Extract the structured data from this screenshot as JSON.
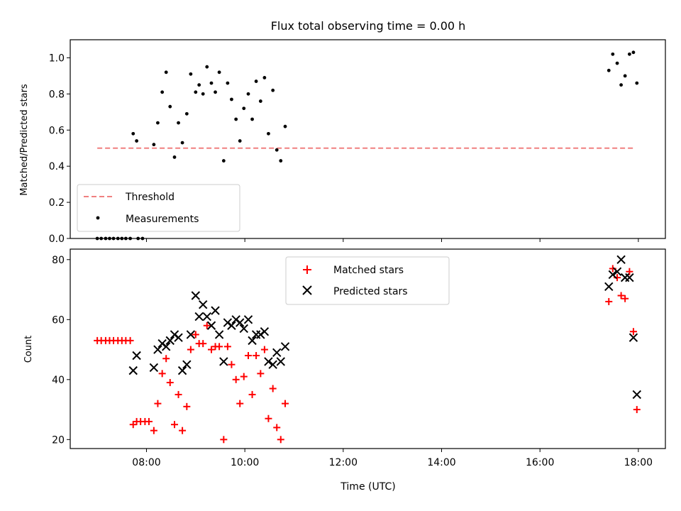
{
  "chart_data": [
    {
      "type": "scatter",
      "title": "Flux total observing time = 0.00 h",
      "xlabel": "",
      "ylabel": "Matched/Predicted stars",
      "xlim": [
        6.45,
        18.55
      ],
      "ylim": [
        0.0,
        1.1
      ],
      "yticks": [
        0.0,
        0.2,
        0.4,
        0.6,
        0.8,
        1.0
      ],
      "ytick_labels": [
        "0.0",
        "0.2",
        "0.4",
        "0.6",
        "0.8",
        "1.0"
      ],
      "xticks": [
        8,
        10,
        12,
        14,
        16,
        18
      ],
      "grid": false,
      "legend": {
        "placement": "lower-left",
        "entries": [
          "Threshold",
          "Measurements"
        ]
      },
      "threshold": {
        "name": "Threshold",
        "value": 0.5,
        "x_range": [
          7.0,
          17.92
        ],
        "color": "#f08080",
        "style": "dashed"
      },
      "series": [
        {
          "name": "Measurements",
          "color": "#000000",
          "marker": "dot",
          "points": [
            [
              7.0,
              0.0
            ],
            [
              7.08,
              0.0
            ],
            [
              7.17,
              0.0
            ],
            [
              7.25,
              0.0
            ],
            [
              7.33,
              0.0
            ],
            [
              7.42,
              0.0
            ],
            [
              7.5,
              0.0
            ],
            [
              7.58,
              0.0
            ],
            [
              7.67,
              0.0
            ],
            [
              7.83,
              0.0
            ],
            [
              7.92,
              0.0
            ],
            [
              7.73,
              0.58
            ],
            [
              7.8,
              0.54
            ],
            [
              8.15,
              0.52
            ],
            [
              8.23,
              0.64
            ],
            [
              8.32,
              0.81
            ],
            [
              8.4,
              0.92
            ],
            [
              8.48,
              0.73
            ],
            [
              8.57,
              0.45
            ],
            [
              8.65,
              0.64
            ],
            [
              8.73,
              0.53
            ],
            [
              8.82,
              0.69
            ],
            [
              8.9,
              0.91
            ],
            [
              9.0,
              0.81
            ],
            [
              9.07,
              0.85
            ],
            [
              9.15,
              0.8
            ],
            [
              9.23,
              0.95
            ],
            [
              9.32,
              0.86
            ],
            [
              9.4,
              0.81
            ],
            [
              9.48,
              0.92
            ],
            [
              9.57,
              0.43
            ],
            [
              9.65,
              0.86
            ],
            [
              9.73,
              0.77
            ],
            [
              9.82,
              0.66
            ],
            [
              9.9,
              0.54
            ],
            [
              9.98,
              0.72
            ],
            [
              10.07,
              0.8
            ],
            [
              10.15,
              0.66
            ],
            [
              10.23,
              0.87
            ],
            [
              10.32,
              0.76
            ],
            [
              10.4,
              0.89
            ],
            [
              10.48,
              0.58
            ],
            [
              10.57,
              0.82
            ],
            [
              10.65,
              0.49
            ],
            [
              10.73,
              0.43
            ],
            [
              10.82,
              0.62
            ],
            [
              17.4,
              0.93
            ],
            [
              17.48,
              1.02
            ],
            [
              17.57,
              0.97
            ],
            [
              17.65,
              0.85
            ],
            [
              17.73,
              0.9
            ],
            [
              17.82,
              1.02
            ],
            [
              17.9,
              1.03
            ],
            [
              17.97,
              0.86
            ]
          ]
        }
      ]
    },
    {
      "type": "scatter",
      "title": "",
      "xlabel": "Time (UTC)",
      "ylabel": "Count",
      "xlim": [
        6.45,
        18.55
      ],
      "ylim": [
        17,
        83.5
      ],
      "yticks": [
        20,
        40,
        60,
        80
      ],
      "ytick_labels": [
        "20",
        "40",
        "60",
        "80"
      ],
      "xticks": [
        8,
        10,
        12,
        14,
        16,
        18
      ],
      "xtick_labels": [
        "08:00",
        "10:00",
        "12:00",
        "14:00",
        "16:00",
        "18:00"
      ],
      "grid": false,
      "legend": {
        "placement": "upper-center",
        "entries": [
          "Matched stars",
          "Predicted stars"
        ]
      },
      "series": [
        {
          "name": "Matched stars",
          "color": "#ff0000",
          "marker": "plus",
          "points": [
            [
              7.0,
              53
            ],
            [
              7.08,
              53
            ],
            [
              7.17,
              53
            ],
            [
              7.25,
              53
            ],
            [
              7.33,
              53
            ],
            [
              7.42,
              53
            ],
            [
              7.5,
              53
            ],
            [
              7.58,
              53
            ],
            [
              7.67,
              53
            ],
            [
              7.73,
              25
            ],
            [
              7.8,
              26
            ],
            [
              7.88,
              26
            ],
            [
              7.97,
              26
            ],
            [
              8.05,
              26
            ],
            [
              8.15,
              23
            ],
            [
              8.23,
              32
            ],
            [
              8.32,
              42
            ],
            [
              8.4,
              47
            ],
            [
              8.48,
              39
            ],
            [
              8.57,
              25
            ],
            [
              8.65,
              35
            ],
            [
              8.73,
              23
            ],
            [
              8.82,
              31
            ],
            [
              8.9,
              50
            ],
            [
              9.0,
              55
            ],
            [
              9.07,
              52
            ],
            [
              9.15,
              52
            ],
            [
              9.23,
              58
            ],
            [
              9.32,
              50
            ],
            [
              9.4,
              51
            ],
            [
              9.48,
              51
            ],
            [
              9.57,
              20
            ],
            [
              9.65,
              51
            ],
            [
              9.73,
              45
            ],
            [
              9.82,
              40
            ],
            [
              9.9,
              32
            ],
            [
              9.98,
              41
            ],
            [
              10.07,
              48
            ],
            [
              10.15,
              35
            ],
            [
              10.23,
              48
            ],
            [
              10.32,
              42
            ],
            [
              10.4,
              50
            ],
            [
              10.48,
              27
            ],
            [
              10.57,
              37
            ],
            [
              10.65,
              24
            ],
            [
              10.73,
              20
            ],
            [
              10.82,
              32
            ],
            [
              17.4,
              66
            ],
            [
              17.48,
              77
            ],
            [
              17.57,
              74
            ],
            [
              17.65,
              68
            ],
            [
              17.73,
              67
            ],
            [
              17.82,
              76
            ],
            [
              17.9,
              56
            ],
            [
              17.97,
              30
            ]
          ]
        },
        {
          "name": "Predicted stars",
          "color": "#000000",
          "marker": "x",
          "points": [
            [
              7.73,
              43
            ],
            [
              7.8,
              48
            ],
            [
              8.15,
              44
            ],
            [
              8.23,
              50
            ],
            [
              8.32,
              52
            ],
            [
              8.4,
              51
            ],
            [
              8.48,
              53
            ],
            [
              8.57,
              55
            ],
            [
              8.65,
              54
            ],
            [
              8.73,
              43
            ],
            [
              8.82,
              45
            ],
            [
              8.9,
              55
            ],
            [
              9.0,
              68
            ],
            [
              9.07,
              61
            ],
            [
              9.15,
              65
            ],
            [
              9.23,
              61
            ],
            [
              9.32,
              58
            ],
            [
              9.4,
              63
            ],
            [
              9.48,
              55
            ],
            [
              9.57,
              46
            ],
            [
              9.65,
              59
            ],
            [
              9.73,
              58
            ],
            [
              9.82,
              60
            ],
            [
              9.9,
              59
            ],
            [
              9.98,
              57
            ],
            [
              10.07,
              60
            ],
            [
              10.15,
              53
            ],
            [
              10.23,
              55
            ],
            [
              10.32,
              55
            ],
            [
              10.4,
              56
            ],
            [
              10.48,
              46
            ],
            [
              10.57,
              45
            ],
            [
              10.65,
              49
            ],
            [
              10.73,
              46
            ],
            [
              10.82,
              51
            ],
            [
              17.4,
              71
            ],
            [
              17.48,
              75
            ],
            [
              17.57,
              76
            ],
            [
              17.65,
              80
            ],
            [
              17.73,
              74
            ],
            [
              17.82,
              74
            ],
            [
              17.9,
              54
            ],
            [
              17.97,
              35
            ]
          ]
        }
      ]
    }
  ]
}
